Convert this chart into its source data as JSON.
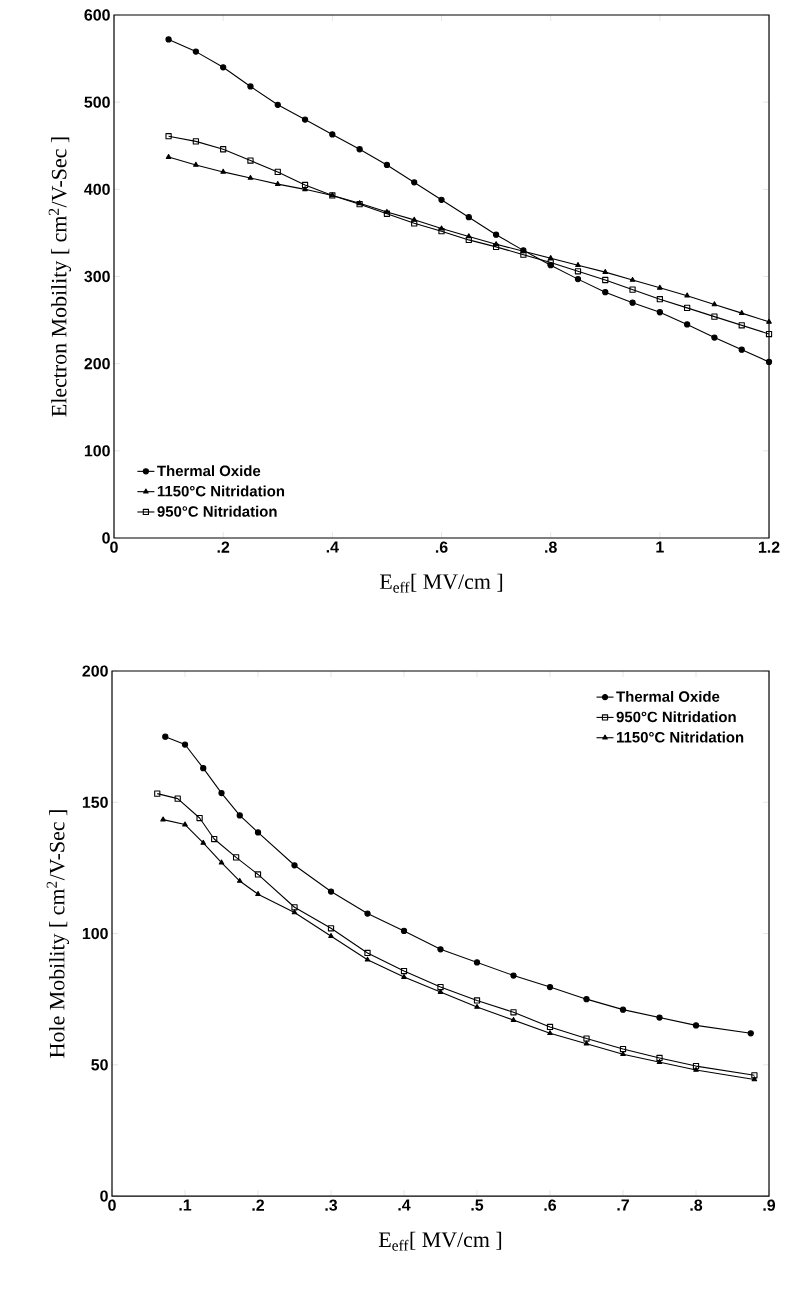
{
  "chart_data": [
    {
      "type": "line",
      "xlabel": "E$_{eff}$[ MV/cm ]",
      "ylabel": "Electron Mobility [ cm$^{2}$/V-Sec ]",
      "xlim": [
        0,
        1.2
      ],
      "ylim": [
        0,
        600
      ],
      "xticks": [
        0,
        {
          "value": 0.2,
          "label": ".2"
        },
        {
          "value": 0.4,
          "label": ".4"
        },
        {
          "value": 0.6,
          "label": ".6"
        },
        {
          "value": 0.8,
          "label": ".8"
        },
        1,
        1.2
      ],
      "yticks": [
        0,
        100,
        200,
        300,
        400,
        500,
        600
      ],
      "grid": false,
      "legend": "bottom left",
      "x": [
        0.1,
        0.15,
        0.2,
        0.25,
        0.3,
        0.35,
        0.4,
        0.45,
        0.5,
        0.55,
        0.6,
        0.65,
        0.7,
        0.75,
        0.8,
        0.85,
        0.9,
        0.95,
        1.0,
        1.05,
        1.1,
        1.15,
        1.2
      ],
      "series": [
        {
          "name": "Thermal Oxide",
          "color": "#000000",
          "marker": "circle",
          "values": [
            572,
            558,
            540,
            518,
            497,
            480,
            463,
            446,
            428,
            408,
            388,
            368,
            348,
            330,
            313,
            297,
            282,
            270,
            259,
            245,
            230,
            216,
            202
          ]
        },
        {
          "name": "1150°C Nitridation",
          "color": "#000000",
          "marker": "triangle",
          "values": [
            437,
            428,
            420,
            413,
            406,
            400,
            393,
            384,
            374,
            365,
            355,
            346,
            337,
            329,
            321,
            313,
            305,
            296,
            287,
            278,
            268,
            258,
            248
          ]
        },
        {
          "name": "950°C Nitridation",
          "color": "#000000",
          "marker": "square",
          "values": [
            461,
            455,
            446,
            433,
            420,
            405,
            393,
            383,
            372,
            361,
            352,
            342,
            334,
            325,
            316,
            306,
            296,
            285,
            274,
            264,
            254,
            244,
            234
          ]
        }
      ]
    },
    {
      "type": "line",
      "xlabel": "E$_{eff}$[ MV/cm ]",
      "ylabel": "Hole Mobility [ cm$^{2}$/V-Sec ]",
      "xlim": [
        0,
        0.9
      ],
      "ylim": [
        0,
        200
      ],
      "xticks": [
        0,
        {
          "value": 0.1,
          "label": ".1"
        },
        {
          "value": 0.2,
          "label": ".2"
        },
        {
          "value": 0.3,
          "label": ".3"
        },
        {
          "value": 0.4,
          "label": ".4"
        },
        {
          "value": 0.5,
          "label": ".5"
        },
        {
          "value": 0.6,
          "label": ".6"
        },
        {
          "value": 0.7,
          "label": ".7"
        },
        {
          "value": 0.8,
          "label": ".8"
        },
        {
          "value": 0.9,
          "label": ".9"
        }
      ],
      "yticks": [
        0,
        50,
        100,
        150,
        200
      ],
      "grid": false,
      "legend": "top right",
      "series": [
        {
          "name": "Thermal Oxide",
          "color": "#000000",
          "marker": "circle",
          "x": [
            0.073,
            0.1,
            0.125,
            0.15,
            0.175,
            0.2,
            0.25,
            0.3,
            0.35,
            0.4,
            0.45,
            0.5,
            0.55,
            0.6,
            0.65,
            0.7,
            0.75,
            0.8,
            0.875
          ],
          "values": [
            175,
            172,
            163,
            153.5,
            145,
            138.5,
            126,
            116,
            107.6,
            101,
            94,
            89,
            84,
            79.6,
            75,
            71,
            68,
            65,
            62
          ]
        },
        {
          "name": "950°C Nitridation",
          "color": "#000000",
          "marker": "square",
          "x": [
            0.062,
            0.09,
            0.12,
            0.14,
            0.17,
            0.2,
            0.25,
            0.3,
            0.35,
            0.4,
            0.45,
            0.5,
            0.55,
            0.6,
            0.65,
            0.7,
            0.75,
            0.8,
            0.88
          ],
          "values": [
            153.3,
            151.4,
            144,
            136,
            129,
            122.5,
            110,
            102,
            92.6,
            85.7,
            79.6,
            74.5,
            70,
            64.4,
            60,
            56,
            52.6,
            49.5,
            46
          ]
        },
        {
          "name": "1150°C Nitridation",
          "color": "#000000",
          "marker": "triangle",
          "x": [
            0.07,
            0.1,
            0.125,
            0.15,
            0.175,
            0.2,
            0.25,
            0.3,
            0.35,
            0.4,
            0.45,
            0.5,
            0.55,
            0.6,
            0.65,
            0.7,
            0.75,
            0.8,
            0.88
          ],
          "values": [
            143.4,
            141.5,
            134.5,
            127,
            120,
            115,
            108,
            99,
            90,
            83.4,
            77.7,
            72,
            67,
            62,
            58,
            54,
            51,
            48,
            44.4
          ]
        }
      ]
    }
  ]
}
